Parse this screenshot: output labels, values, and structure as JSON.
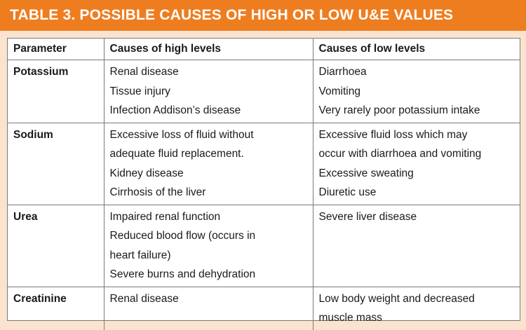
{
  "title": "TABLE 3. POSSIBLE CAUSES OF HIGH OR LOW U&E VALUES",
  "headers": [
    "Parameter",
    "Causes of high levels",
    "Causes of low levels"
  ],
  "rows": [
    {
      "parameter": "Potassium",
      "high": [
        "Renal disease",
        "Tissue injury",
        "Infection Addison’s disease"
      ],
      "low": [
        "Diarrhoea",
        "Vomiting",
        "Very rarely poor  potassium intake"
      ]
    },
    {
      "parameter": "Sodium",
      "high": [
        "Excessive loss of fluid without",
        "adequate fluid replacement.",
        "Kidney disease",
        "Cirrhosis of the liver"
      ],
      "low": [
        "Excessive fluid loss which may",
        "occur with diarrhoea and vomiting",
        "Excessive sweating",
        "Diuretic use"
      ]
    },
    {
      "parameter": "Urea",
      "high": [
        "Impaired renal function",
        "Reduced blood flow (occurs in",
        "heart failure)",
        "Severe burns and dehydration"
      ],
      "low": [
        "Severe liver disease"
      ]
    },
    {
      "parameter": "Creatinine",
      "high": [
        "Renal disease"
      ],
      "low": [
        "Low body weight and decreased",
        "muscle mass"
      ]
    }
  ],
  "colors": {
    "title_bar": "#ee7d20",
    "background": "#fbe4cf",
    "table_bg": "#ffffff",
    "border": "#7a7a7a"
  }
}
